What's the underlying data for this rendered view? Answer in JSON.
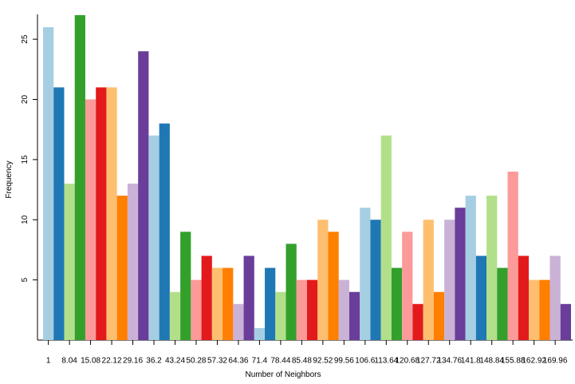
{
  "chart_data": {
    "type": "bar",
    "x_label": "Number of Neighbors",
    "y_label": "Frequency",
    "categories": [
      "1",
      null,
      "8.04",
      null,
      "15.08",
      null,
      "22.12",
      null,
      "29.16",
      null,
      "36.2",
      null,
      "43.24",
      null,
      "50.28",
      null,
      "57.32",
      null,
      "64.36",
      null,
      "71.4",
      null,
      "78.44",
      null,
      "85.48",
      null,
      "92.52",
      null,
      "99.56",
      null,
      "106.6",
      null,
      "113.64",
      null,
      "120.68",
      null,
      "127.72",
      null,
      "134.76",
      null,
      "141.8",
      null,
      "148.84",
      null,
      "155.88",
      null,
      "162.92",
      null,
      "169.96",
      null
    ],
    "values": [
      26,
      21,
      13,
      27,
      20,
      21,
      21,
      12,
      13,
      24,
      17,
      18,
      4,
      9,
      5,
      7,
      6,
      6,
      3,
      7,
      1,
      6,
      4,
      8,
      5,
      5,
      10,
      9,
      5,
      4,
      11,
      10,
      17,
      6,
      9,
      3,
      10,
      4,
      10,
      11,
      12,
      7,
      12,
      6,
      14,
      7,
      5,
      5,
      7,
      3
    ],
    "colors": [
      "#a6cee3",
      "#1f78b4",
      "#b2df8a",
      "#33a02c",
      "#fb9a99",
      "#e31a1c",
      "#fdbf6f",
      "#ff7f00",
      "#cab2d6",
      "#6a3d9a"
    ],
    "ylim": [
      0,
      27
    ],
    "yticks": [
      5,
      10,
      15,
      20,
      25
    ],
    "grid": false
  }
}
